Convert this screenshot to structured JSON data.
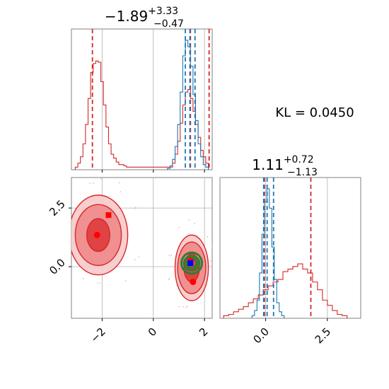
{
  "colors": {
    "red": "#d62728",
    "blue": "#1f77b4",
    "green": "#2e7d32",
    "grid": "#b0b0b0",
    "frame": "#808080",
    "marker_red": "#ff0000",
    "marker_blue": "#0000ff"
  },
  "chart_data": [
    {
      "type": "histogram",
      "panel": "marginal-param-1",
      "title": {
        "main": "−1.89",
        "sup": "+3.33",
        "sub": "−0.47"
      },
      "xlim": [
        -3.2,
        2.3
      ],
      "grid": true,
      "series": [
        {
          "color": "red",
          "x": [
            -3.0,
            -2.9,
            -2.8,
            -2.7,
            -2.6,
            -2.5,
            -2.4,
            -2.3,
            -2.2,
            -2.1,
            -2.0,
            -1.9,
            -1.8,
            -1.7,
            -1.6,
            -1.5,
            -1.4,
            -1.3,
            -1.2,
            -1.1,
            -1.0,
            -0.9,
            0.7,
            0.8,
            0.9,
            1.0,
            1.1,
            1.2,
            1.3,
            1.4,
            1.5,
            1.6,
            1.7,
            1.8,
            1.9,
            2.0,
            2.1
          ],
          "density": [
            0.02,
            0.05,
            0.1,
            0.2,
            0.35,
            0.55,
            0.75,
            0.82,
            0.84,
            0.83,
            0.68,
            0.5,
            0.33,
            0.2,
            0.12,
            0.09,
            0.06,
            0.04,
            0.04,
            0.03,
            0.02,
            0.02,
            0.02,
            0.05,
            0.12,
            0.22,
            0.36,
            0.5,
            0.6,
            0.62,
            0.55,
            0.45,
            0.35,
            0.25,
            0.15,
            0.1,
            0.05
          ],
          "quantile_lines": [
            -2.38,
            1.45,
            2.18
          ]
        },
        {
          "color": "blue",
          "x": [
            0.6,
            0.7,
            0.8,
            0.9,
            1.0,
            1.1,
            1.2,
            1.3,
            1.4,
            1.5,
            1.6,
            1.7,
            1.8,
            1.9,
            2.0,
            2.1
          ],
          "density": [
            0.01,
            0.03,
            0.08,
            0.18,
            0.35,
            0.6,
            0.88,
            1.0,
            0.95,
            0.8,
            0.58,
            0.38,
            0.2,
            0.1,
            0.04,
            0.02
          ],
          "quantile_lines": [
            1.25,
            1.43,
            1.63
          ]
        }
      ]
    },
    {
      "type": "contour",
      "panel": "joint-param-1-vs-param-2",
      "xlim": [
        -3.2,
        2.3
      ],
      "ylim": [
        -2.2,
        3.8
      ],
      "xticks": [
        "−2",
        "0",
        "2"
      ],
      "yticks": [
        "0.0",
        "2.5"
      ],
      "grid": true,
      "regions": [
        {
          "color": "red",
          "center": [
            -2.15,
            1.35
          ],
          "rx": [
            0.45,
            0.9,
            1.15
          ],
          "ry": [
            0.7,
            1.3,
            1.7
          ]
        },
        {
          "color": "red",
          "center": [
            1.5,
            -0.05
          ],
          "rx": [
            0.3,
            0.55,
            0.65
          ],
          "ry": [
            0.6,
            1.1,
            1.4
          ]
        },
        {
          "color": "green",
          "center": [
            1.5,
            0.15
          ],
          "rx": [
            0.2,
            0.3,
            0.4
          ],
          "ry": [
            0.2,
            0.3,
            0.45
          ]
        }
      ],
      "markers": [
        {
          "color": "marker_red",
          "shape": "circle",
          "x": -2.2,
          "y": 1.35
        },
        {
          "color": "marker_red",
          "shape": "square",
          "x": -1.75,
          "y": 2.2
        },
        {
          "color": "marker_red",
          "shape": "circle",
          "x": 1.45,
          "y": 0.25
        },
        {
          "color": "marker_red",
          "shape": "circle",
          "x": 1.55,
          "y": -0.65
        },
        {
          "color": "marker_blue",
          "shape": "square",
          "x": 1.45,
          "y": 0.15
        }
      ]
    },
    {
      "type": "histogram",
      "panel": "marginal-param-2",
      "title": {
        "main": "1.11",
        "sup": "+0.72",
        "sub": "−1.13"
      },
      "xlim": [
        -1.85,
        3.85
      ],
      "xticks": [
        "0.0",
        "2.5"
      ],
      "grid": true,
      "series": [
        {
          "color": "red",
          "x": [
            -1.6,
            -1.4,
            -1.2,
            -1.0,
            -0.8,
            -0.6,
            -0.4,
            -0.2,
            0.0,
            0.2,
            0.4,
            0.6,
            0.8,
            1.0,
            1.2,
            1.4,
            1.6,
            1.8,
            2.0,
            2.2,
            2.4,
            2.6,
            2.8,
            3.0,
            3.2
          ],
          "density": [
            0.02,
            0.03,
            0.05,
            0.07,
            0.09,
            0.12,
            0.15,
            0.18,
            0.22,
            0.25,
            0.28,
            0.3,
            0.36,
            0.38,
            0.4,
            0.42,
            0.38,
            0.35,
            0.28,
            0.22,
            0.14,
            0.1,
            0.06,
            0.03,
            0.02
          ],
          "quantile_lines": [
            -0.05,
            1.83
          ]
        },
        {
          "color": "blue",
          "x": [
            -0.5,
            -0.4,
            -0.3,
            -0.2,
            -0.1,
            0.0,
            0.1,
            0.2,
            0.3,
            0.4,
            0.5,
            0.6,
            0.7
          ],
          "density": [
            0.02,
            0.06,
            0.14,
            0.35,
            0.65,
            0.9,
            1.0,
            0.85,
            0.55,
            0.3,
            0.12,
            0.05,
            0.02
          ],
          "quantile_lines": [
            -0.08,
            0.06,
            0.32
          ]
        }
      ]
    }
  ],
  "annotation": {
    "kl_text": "KL = 0.0450"
  }
}
